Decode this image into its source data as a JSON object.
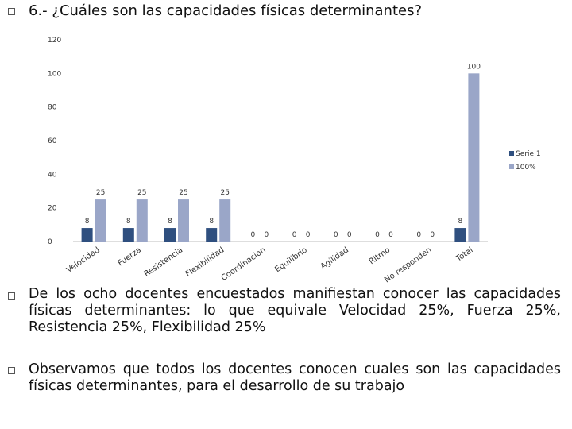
{
  "heading": "6.- ¿Cuáles son las capacidades físicas determinantes?",
  "paragraphs": [
    "De los ocho docentes encuestados manifiestan conocer las capacidades físicas determinantes: lo que equivale Velocidad 25%, Fuerza 25%, Resistencia 25%, Flexibilidad 25%",
    "Observamos que todos los docentes conocen cuales son las capacidades físicas determinantes, para el desarrollo de su trabajo"
  ],
  "chart_data": {
    "type": "bar",
    "categories": [
      "Velocidad",
      "Fuerza",
      "Resistencia",
      "Flexibilidad",
      "Coordinación",
      "Equilibrio",
      "Agilidad",
      "Ritmo",
      "No responden",
      "Total"
    ],
    "series": [
      {
        "name": "Serie 1",
        "color": "#2f4f7f",
        "values": [
          8,
          8,
          8,
          8,
          0,
          0,
          0,
          0,
          0,
          8
        ]
      },
      {
        "name": "100%",
        "color": "#9aa6c8",
        "values": [
          25,
          25,
          25,
          25,
          0,
          0,
          0,
          0,
          0,
          100
        ]
      }
    ],
    "ylim": [
      0,
      120
    ],
    "yticks": [
      0,
      20,
      40,
      60,
      80,
      100,
      120
    ],
    "grid": false,
    "legend_position": "right"
  }
}
